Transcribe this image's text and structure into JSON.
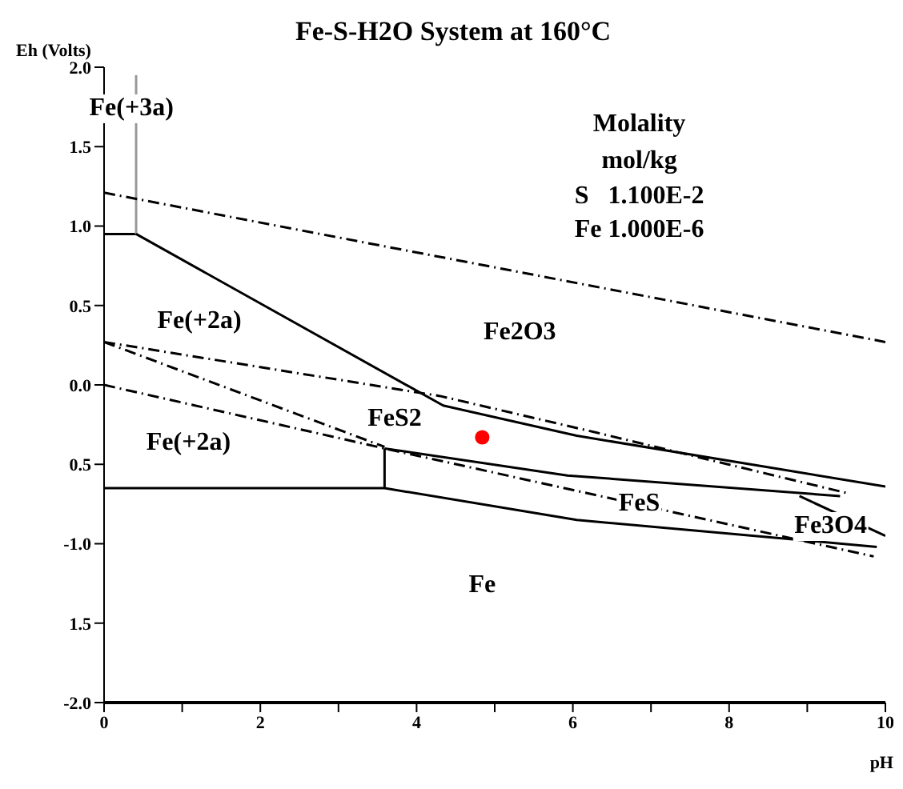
{
  "chart_data": {
    "type": "line",
    "title": "Fe-S-H2O System at 160°C",
    "ylabel": "Eh (Volts)",
    "xlabel": "pH",
    "xlim": [
      0,
      10
    ],
    "ylim": [
      -2,
      2
    ],
    "xticks": [
      0,
      {
        "value": 1,
        "label": null
      },
      2,
      {
        "value": 3,
        "label": null
      },
      4,
      {
        "value": 5,
        "label": null
      },
      6,
      {
        "value": 7,
        "label": null
      },
      8,
      {
        "value": 9,
        "label": null
      },
      10
    ],
    "yticks": [
      {
        "value": 2,
        "label": "2.0"
      },
      {
        "value": 1.5,
        "label": "1.5"
      },
      {
        "value": 1,
        "label": "1.0"
      },
      {
        "value": 0.5,
        "label": "0.5"
      },
      {
        "value": 0,
        "label": "0.0"
      },
      {
        "value": -0.5,
        "label": "0.5"
      },
      {
        "value": -1,
        "label": "-1.0"
      },
      {
        "value": -1.5,
        "label": "1.5"
      },
      {
        "value": -2,
        "label": "-2.0"
      }
    ],
    "marker": "none",
    "series": [
      {
        "x": [
          0,
          0.41
        ],
        "values": [
          0.95,
          0.95
        ],
        "color": "#000000",
        "line_style": "solid"
      },
      {
        "x": [
          0.41,
          0.41
        ],
        "values": [
          0.95,
          1.95
        ],
        "color": "#999999",
        "line_style": "solid"
      },
      {
        "x": [
          0.41,
          4.34,
          6.05,
          10
        ],
        "values": [
          0.95,
          -0.13,
          -0.32,
          -0.64
        ],
        "color": "#000000",
        "line_style": "solid"
      },
      {
        "x": [
          3.59,
          5.93,
          9.42
        ],
        "values": [
          -0.4,
          -0.57,
          -0.7
        ],
        "color": "#000000",
        "line_style": "solid"
      },
      {
        "x": [
          3.59,
          3.59
        ],
        "values": [
          -0.4,
          -0.65
        ],
        "color": "#000000",
        "line_style": "solid"
      },
      {
        "x": [
          0,
          3.59,
          6.05,
          9.89
        ],
        "values": [
          -0.65,
          -0.65,
          -0.85,
          -1.02
        ],
        "color": "#000000",
        "line_style": "solid"
      },
      {
        "x": [
          8.9,
          10
        ],
        "values": [
          -0.7,
          -0.95
        ],
        "color": "#000000",
        "line_style": "solid"
      },
      {
        "x": [
          0,
          10
        ],
        "values": [
          1.21,
          0.27
        ],
        "color": "#000000",
        "line_style": "dashed"
      },
      {
        "x": [
          0,
          4.3,
          6.3,
          9.5
        ],
        "values": [
          0.27,
          -0.07,
          -0.3,
          -0.68
        ],
        "color": "#000000",
        "line_style": "dashed"
      },
      {
        "x": [
          0,
          3.59
        ],
        "values": [
          0.27,
          -0.39
        ],
        "color": "#000000",
        "line_style": "dashed"
      },
      {
        "x": [
          0,
          3.59,
          9.85
        ],
        "values": [
          0,
          -0.4,
          -1.08
        ],
        "color": "#000000",
        "line_style": "dashed"
      },
      {
        "type": "scatter",
        "x": [
          4.84
        ],
        "values": [
          -0.33
        ],
        "color": "#ff0000",
        "marker": "circle"
      }
    ],
    "annotations": [
      "Fe(+3a)",
      "Molality",
      "mol/kg",
      "S   1.100E-2",
      "Fe 1.000E-6",
      "Fe(+2a)",
      "Fe2O3",
      "FeS2",
      "Fe(+2a)",
      "FeS",
      "Fe3O4",
      "Fe"
    ]
  }
}
